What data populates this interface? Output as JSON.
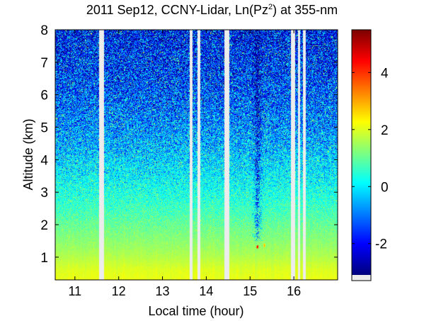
{
  "chart_data": {
    "type": "heatmap",
    "title": {
      "prefix": "2011 Sep12, CCNY-Lidar, Ln(Pz",
      "superscript": "2",
      "suffix": ") at 355-nm"
    },
    "xlabel": "Local time (hour)",
    "ylabel": "Altitude (km)",
    "xlim": [
      10.55,
      17.0
    ],
    "ylim": [
      0.3,
      8.0
    ],
    "x_ticks": [
      11,
      12,
      13,
      14,
      15,
      16
    ],
    "y_ticks": [
      1,
      2,
      3,
      4,
      5,
      6,
      7,
      8
    ],
    "colorbar": {
      "range": [
        -3.1,
        5.5
      ],
      "ticks": [
        -2,
        0,
        2,
        4
      ],
      "colormap": "jet",
      "missing_color": "#ececec"
    },
    "data_gaps_hours": [
      [
        11.56,
        11.66
      ],
      [
        13.62,
        13.69
      ],
      [
        13.8,
        13.86
      ],
      [
        14.42,
        14.53
      ],
      [
        15.94,
        16.03
      ],
      [
        16.1,
        16.14
      ],
      [
        16.2,
        16.27
      ]
    ],
    "cloud_column_hours": [
      15.05,
      15.35
    ],
    "profile_model": {
      "altitude_km": [
        0.3,
        0.6,
        1.0,
        1.5,
        2.0,
        2.5,
        3.0,
        4.0,
        5.0,
        6.0,
        7.0,
        8.0
      ],
      "ln_pz2": [
        2.1,
        2.0,
        1.65,
        1.3,
        1.0,
        0.65,
        0.35,
        -0.2,
        -0.8,
        -1.3,
        -1.7,
        -2.0
      ],
      "noise_std": [
        0.08,
        0.08,
        0.1,
        0.15,
        0.25,
        0.35,
        0.5,
        0.8,
        1.05,
        1.25,
        1.4,
        1.5
      ]
    },
    "cloud_hotspots": [
      {
        "x": 15.17,
        "y": 1.32,
        "value": 4.6
      },
      {
        "x": 15.33,
        "y": 1.36,
        "value": 3.2
      }
    ]
  }
}
